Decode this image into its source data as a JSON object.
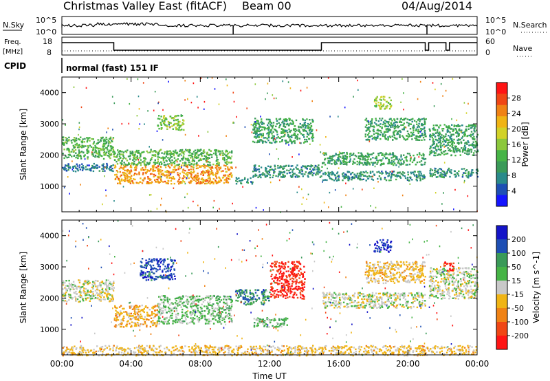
{
  "header": {
    "title": "Christmas Valley East (fitACF)",
    "beam": "Beam 00",
    "date": "04/Aug/2014"
  },
  "panels": {
    "nsky": {
      "label": "N.Sky",
      "right_label": "N.Search",
      "ticks_left": [
        "10^5",
        "10^0"
      ],
      "ticks_right": [
        "10^5",
        "10^0"
      ]
    },
    "freq": {
      "label_line1": "Freq.",
      "label_line2": "[MHz]",
      "ticks_left": [
        "18",
        "8"
      ],
      "right_label": "Nave",
      "ticks_right": [
        "60",
        "0"
      ]
    },
    "cpid": {
      "label": "CPID",
      "value": "normal (fast) 151 IF"
    }
  },
  "chart_data": [
    {
      "type": "heatmap",
      "name_printed": "",
      "ylabel": "Slant Range [km]",
      "xlabel": "",
      "ylim": [
        180,
        4500
      ],
      "yticks": [
        "1000",
        "2000",
        "3000",
        "4000"
      ],
      "xlim": [
        "00:00",
        "24:00"
      ],
      "colorbar": {
        "label": "Power [dB]",
        "ticks": [
          "28",
          "24",
          "20",
          "16",
          "12",
          "8",
          "4"
        ],
        "range": [
          0,
          30
        ],
        "colors": [
          "#1414ff",
          "#1e4fb4",
          "#2a8a8a",
          "#3a9a58",
          "#46b446",
          "#8cc83c",
          "#d2d228",
          "#f0b414",
          "#f08214",
          "#f04614",
          "#ff1414"
        ]
      },
      "regions": [
        {
          "t0": 0.0,
          "t1": 3.0,
          "r0": 1900,
          "r1": 2600,
          "power": 12
        },
        {
          "t0": 0.0,
          "t1": 3.0,
          "r0": 1500,
          "r1": 1750,
          "power": 6
        },
        {
          "t0": 3.0,
          "t1": 9.8,
          "r0": 1100,
          "r1": 1700,
          "power": 22
        },
        {
          "t0": 3.0,
          "t1": 9.8,
          "r0": 1700,
          "r1": 2200,
          "power": 12
        },
        {
          "t0": 5.5,
          "t1": 7.0,
          "r0": 2800,
          "r1": 3300,
          "power": 14
        },
        {
          "t0": 10.0,
          "t1": 11.0,
          "r0": 1100,
          "r1": 1300,
          "power": 8
        },
        {
          "t0": 11.0,
          "t1": 15.0,
          "r0": 1300,
          "r1": 1700,
          "power": 8
        },
        {
          "t0": 11.0,
          "t1": 14.5,
          "r0": 2400,
          "r1": 3200,
          "power": 10
        },
        {
          "t0": 15.0,
          "t1": 21.0,
          "r0": 1200,
          "r1": 1500,
          "power": 8
        },
        {
          "t0": 15.0,
          "t1": 21.0,
          "r0": 1700,
          "r1": 2100,
          "power": 10
        },
        {
          "t0": 17.5,
          "t1": 21.0,
          "r0": 2500,
          "r1": 3200,
          "power": 10
        },
        {
          "t0": 18.0,
          "t1": 19.0,
          "r0": 3500,
          "r1": 3900,
          "power": 16
        },
        {
          "t0": 21.2,
          "t1": 24.0,
          "r0": 1300,
          "r1": 1600,
          "power": 8
        },
        {
          "t0": 21.2,
          "t1": 24.0,
          "r0": 2000,
          "r1": 3000,
          "power": 10
        }
      ]
    },
    {
      "type": "heatmap",
      "name_printed": "",
      "ylabel": "Slant Range [km]",
      "xlabel": "Time UT",
      "ylim": [
        180,
        4500
      ],
      "yticks": [
        "1000",
        "2000",
        "3000",
        "4000"
      ],
      "xticks": [
        "00:00",
        "04:00",
        "08:00",
        "12:00",
        "16:00",
        "20:00",
        "00:00"
      ],
      "xlim": [
        "00:00",
        "24:00"
      ],
      "colorbar": {
        "label": "Velocity [m s^-1]",
        "ticks": [
          "200",
          "100",
          "50",
          "15",
          "-15",
          "-50",
          "-100",
          "-200"
        ],
        "range": [
          -250,
          250
        ],
        "colors": [
          "#ff1414",
          "#f04614",
          "#f08214",
          "#f0b414",
          "#c8c8c8",
          "#46b446",
          "#3a9a58",
          "#1e4fb4",
          "#1414c8"
        ]
      },
      "regions": [
        {
          "t0": 0.0,
          "t1": 3.0,
          "r0": 1900,
          "r1": 2600,
          "velocity": 0
        },
        {
          "t0": 3.0,
          "t1": 5.5,
          "r0": 1100,
          "r1": 1800,
          "velocity": -60
        },
        {
          "t0": 5.5,
          "t1": 9.8,
          "r0": 1200,
          "r1": 2100,
          "velocity": 40
        },
        {
          "t0": 4.5,
          "t1": 6.5,
          "r0": 2600,
          "r1": 3300,
          "velocity": 180
        },
        {
          "t0": 10.0,
          "t1": 12.0,
          "r0": 1800,
          "r1": 2300,
          "velocity": 120
        },
        {
          "t0": 12.0,
          "t1": 14.0,
          "r0": 2000,
          "r1": 3200,
          "velocity": -200
        },
        {
          "t0": 11.0,
          "t1": 13.0,
          "r0": 1100,
          "r1": 1400,
          "velocity": 60
        },
        {
          "t0": 15.0,
          "t1": 21.0,
          "r0": 1700,
          "r1": 2200,
          "velocity": 0
        },
        {
          "t0": 17.5,
          "t1": 21.0,
          "r0": 2500,
          "r1": 3200,
          "velocity": -40
        },
        {
          "t0": 18.0,
          "t1": 19.0,
          "r0": 3500,
          "r1": 3900,
          "velocity": 200
        },
        {
          "t0": 21.2,
          "t1": 24.0,
          "r0": 2000,
          "r1": 3000,
          "velocity": 0
        },
        {
          "t0": 22.0,
          "t1": 22.6,
          "r0": 2900,
          "r1": 3200,
          "velocity": -200
        },
        {
          "t0": 0.0,
          "t1": 24.0,
          "r0": 180,
          "r1": 500,
          "velocity": -40
        }
      ]
    }
  ]
}
